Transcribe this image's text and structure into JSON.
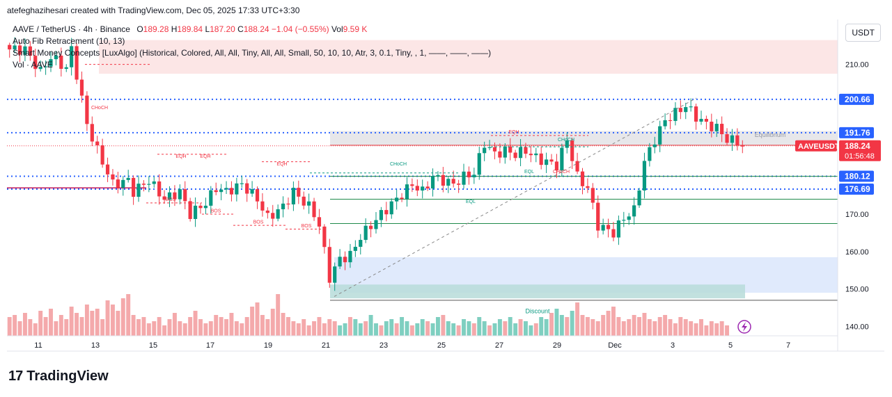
{
  "header": {
    "attribution": "atefeghazihesari created with TradingView.com, Dec 05, 2025 17:33 UTC+3:30"
  },
  "legend": {
    "symbol_line": "AAVE / TetherUS · 4h · Binance",
    "o_label": "O",
    "o_value": "189.28",
    "h_label": "H",
    "h_value": "189.84",
    "l_label": "L",
    "l_value": "187.20",
    "c_label": "C",
    "c_value": "188.24",
    "change": "−1.04 (−0.55%)",
    "vol_label": "Vol",
    "vol_value": "9.59 K",
    "indicator_1": "Auto Fib Retracement (10, 13)",
    "indicator_2": "Smart Money Concepts [LuxAlgo] (Historical, Colored, All, All, Tiny, All, All, Small, 50, 10, 10, Atr, 3, 0.1, Tiny, , 1, ——, ——, ——)",
    "indicator_3": "Vol · AAVE"
  },
  "currency_button": "USDT",
  "price_labels": {
    "p200": "200.66",
    "p191": "191.76",
    "symbol": "AAVEUSDT",
    "current": "188.24",
    "countdown": "01:56:48",
    "p180": "180.12",
    "p176": "176.69"
  },
  "annotations": {
    "equilibrium": "Equilibrium",
    "discount": "Discount",
    "choch": "CHoCH",
    "bos": "BOS",
    "eqh": "EQH",
    "eql": "EQL"
  },
  "colors": {
    "up": "#089981",
    "down": "#f23645",
    "premium_zone": "#fbe2e2",
    "discount_zone": "#dbe6fc",
    "equilibrium_zone": "#e3e3e6",
    "blue_dotted": "#2962ff"
  },
  "footer": {
    "brand": "TradingView",
    "mark": "17"
  },
  "chart_data": {
    "type": "candlestick",
    "title": "AAVE / TetherUS · 4h · Binance",
    "ylabel": "USDT",
    "ylim": [
      137.5,
      222
    ],
    "x_ticks": [
      "11",
      "13",
      "15",
      "17",
      "19",
      "21",
      "23",
      "25",
      "27",
      "29",
      "Dec",
      "3",
      "5",
      "7"
    ],
    "y_ticks": [
      140,
      150,
      160,
      170,
      180,
      190,
      200,
      210
    ],
    "y_tick_labels": [
      "140.00",
      "150.00",
      "160.00",
      "170.00",
      "",
      "",
      "",
      "210.00"
    ],
    "close_path": [
      [
        0,
        214
      ],
      [
        3,
        214
      ],
      [
        6,
        208
      ],
      [
        8,
        212
      ],
      [
        11,
        209
      ],
      [
        12,
        214
      ],
      [
        15,
        194
      ],
      [
        17,
        187
      ],
      [
        20,
        178
      ],
      [
        23,
        179
      ],
      [
        24,
        176
      ],
      [
        27,
        179
      ],
      [
        30,
        174
      ],
      [
        33,
        176
      ],
      [
        35,
        170
      ],
      [
        38,
        173
      ],
      [
        40,
        177
      ],
      [
        42,
        176
      ],
      [
        45,
        178
      ],
      [
        48,
        174
      ],
      [
        50,
        169
      ],
      [
        53,
        172
      ],
      [
        55,
        176
      ],
      [
        58,
        172
      ],
      [
        59,
        170
      ],
      [
        60,
        167
      ],
      [
        62,
        153
      ],
      [
        64,
        158
      ],
      [
        66,
        159
      ],
      [
        68,
        164
      ],
      [
        70,
        167
      ],
      [
        72,
        170
      ],
      [
        75,
        174
      ],
      [
        78,
        178
      ],
      [
        80,
        176
      ],
      [
        82,
        180
      ],
      [
        84,
        179
      ],
      [
        86,
        178
      ],
      [
        88,
        180
      ],
      [
        90,
        181
      ],
      [
        92,
        189
      ],
      [
        94,
        186
      ],
      [
        96,
        187
      ],
      [
        98,
        186
      ],
      [
        100,
        187
      ],
      [
        102,
        185
      ],
      [
        104,
        184
      ],
      [
        106,
        183
      ],
      [
        108,
        190
      ],
      [
        110,
        180
      ],
      [
        112,
        177
      ],
      [
        114,
        167
      ],
      [
        117,
        165
      ],
      [
        119,
        169
      ],
      [
        121,
        171
      ],
      [
        123,
        184
      ],
      [
        125,
        190
      ],
      [
        127,
        195
      ],
      [
        129,
        197
      ],
      [
        131,
        199
      ],
      [
        133,
        196
      ],
      [
        135,
        194
      ],
      [
        137,
        193
      ],
      [
        139,
        190
      ],
      [
        141,
        189.28
      ],
      [
        142,
        188.24
      ]
    ],
    "volume_profile": [
      9,
      10,
      7,
      11,
      8,
      6,
      12,
      9,
      13,
      7,
      10,
      8,
      14,
      11,
      9,
      15,
      12,
      13,
      8,
      17,
      15,
      12,
      18,
      20,
      10,
      8,
      9,
      6,
      7,
      9,
      5,
      8,
      11,
      7,
      6,
      9,
      12,
      8,
      6,
      7,
      10,
      9,
      8,
      11,
      7,
      6,
      9,
      14,
      16,
      10,
      8,
      13,
      20,
      11,
      9,
      7,
      6,
      8,
      5,
      7,
      9,
      6,
      8,
      7,
      5,
      6,
      9,
      8,
      6,
      7,
      10,
      6,
      5,
      7,
      8,
      6,
      9,
      7,
      5,
      6,
      8,
      7,
      6,
      9,
      10,
      7,
      6,
      5,
      8,
      7,
      6,
      9,
      7,
      5,
      6,
      8,
      7,
      9,
      6,
      8,
      7,
      5,
      6,
      9,
      8,
      11,
      13,
      10,
      9,
      12,
      16,
      10,
      9,
      8,
      7,
      10,
      12,
      14,
      9,
      7,
      8,
      10,
      9,
      11,
      8,
      7,
      9,
      10,
      8,
      6,
      9,
      8,
      7,
      6,
      8,
      5,
      7,
      6,
      7,
      5
    ],
    "series_name": "AAVEUSDT",
    "last_close": 188.24,
    "levels": {
      "blue_dotted": [
        200.66,
        191.76,
        180.12,
        176.69
      ],
      "red_dotted_current": 188.24,
      "green_lines": [
        180.12,
        174,
        167.5
      ],
      "dark_line": 147
    },
    "zones": [
      {
        "name": "premium",
        "from": 207.5,
        "to": 216.5
      },
      {
        "name": "equilibrium",
        "from": 188.3,
        "to": 192.2
      },
      {
        "name": "discount",
        "from": 149,
        "to": 158.5
      },
      {
        "name": "discount-teal",
        "from": 147.5,
        "to": 151.2
      }
    ]
  }
}
